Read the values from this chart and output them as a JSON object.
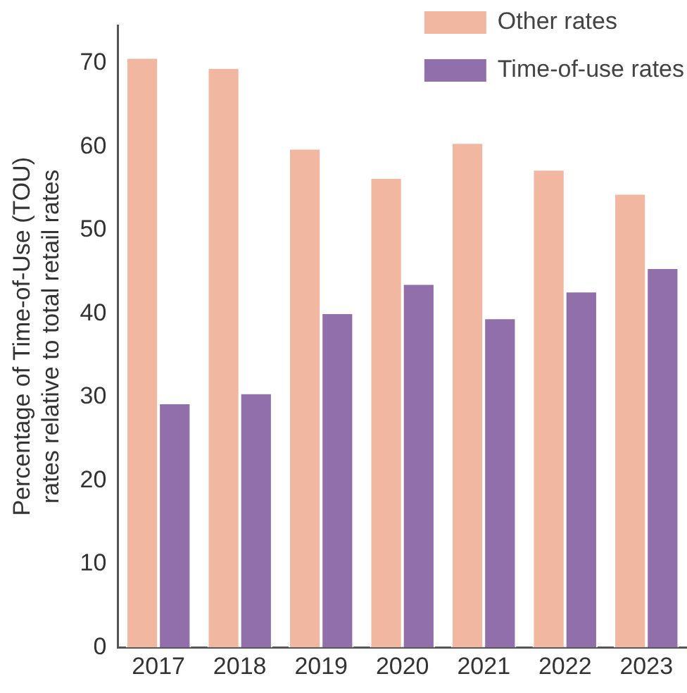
{
  "chart_data": {
    "type": "bar",
    "ylabel": "Percentage of Time-of-Use (TOU) rates relative to total retail rates",
    "categories": [
      "2017",
      "2018",
      "2019",
      "2020",
      "2021",
      "2022",
      "2023"
    ],
    "series": [
      {
        "name": "Other rates",
        "color": "#f2b7a1",
        "values": [
          70.7,
          69.5,
          59.8,
          56.3,
          60.5,
          57.3,
          54.4
        ]
      },
      {
        "name": "Time-of-use rates",
        "color": "#916fab",
        "values": [
          29.3,
          30.5,
          40.1,
          43.6,
          39.5,
          42.7,
          45.5
        ]
      }
    ],
    "ylim": [
      0,
      74.5
    ],
    "yticks": [
      0,
      10,
      20,
      30,
      40,
      50,
      60,
      70
    ],
    "grid": false,
    "legend": "top right"
  }
}
